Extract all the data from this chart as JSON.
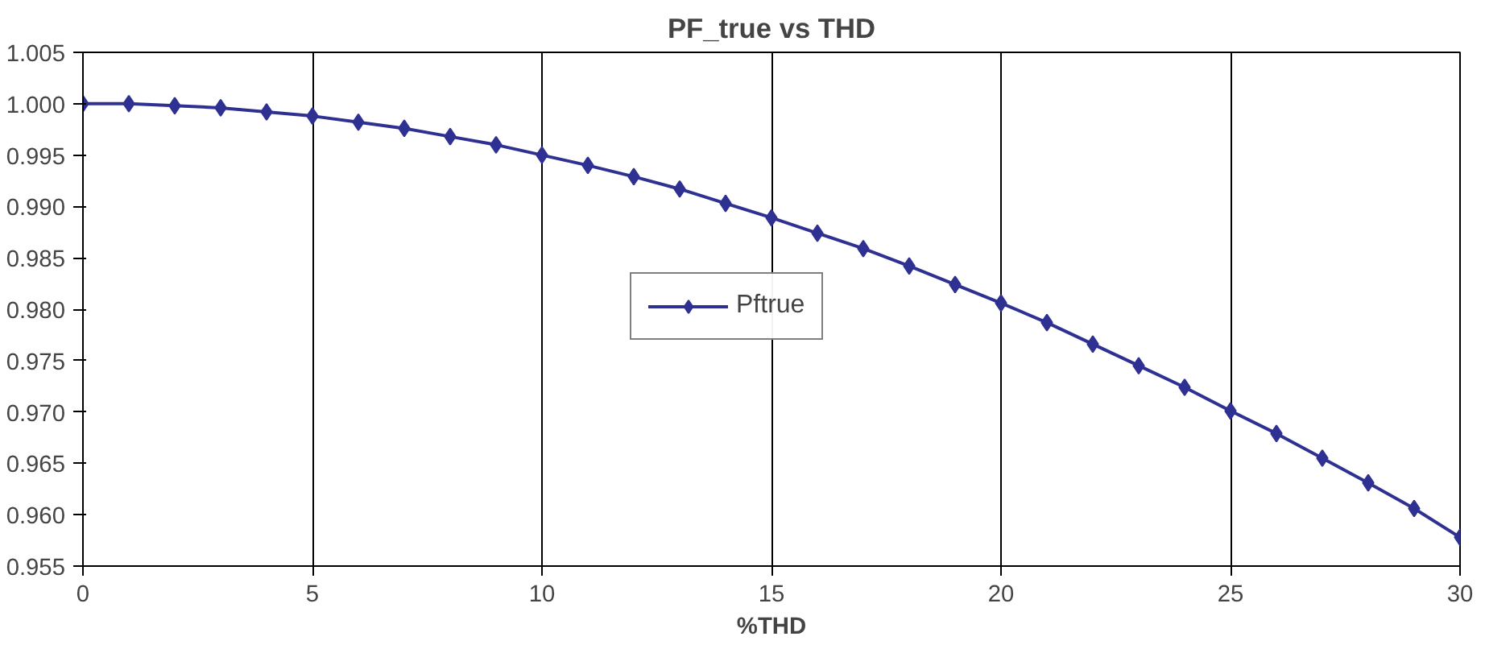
{
  "chart_data": {
    "type": "line",
    "title": "PF_true vs THD",
    "xlabel": "%THD",
    "x": [
      0,
      1,
      2,
      3,
      4,
      5,
      6,
      7,
      8,
      9,
      10,
      11,
      12,
      13,
      14,
      15,
      16,
      17,
      18,
      19,
      20,
      21,
      22,
      23,
      24,
      25,
      26,
      27,
      28,
      29,
      30
    ],
    "series": [
      {
        "name": "Pftrue",
        "color": "#2e3192",
        "values": [
          1.0,
          1.0,
          0.9998,
          0.9996,
          0.9992,
          0.9988,
          0.9982,
          0.9976,
          0.9968,
          0.996,
          0.995,
          0.994,
          0.9929,
          0.9917,
          0.9903,
          0.9889,
          0.9874,
          0.9859,
          0.9842,
          0.9824,
          0.9806,
          0.9787,
          0.9766,
          0.9745,
          0.9724,
          0.9701,
          0.9679,
          0.9655,
          0.9631,
          0.9606,
          0.9578
        ]
      }
    ],
    "xlim": [
      0,
      30
    ],
    "xticks": [
      0,
      5,
      10,
      15,
      20,
      25,
      30
    ],
    "ylim": [
      0.955,
      1.005
    ],
    "yticks": [
      {
        "value": 0.955,
        "label": "0.955"
      },
      {
        "value": 0.96,
        "label": "0.960"
      },
      {
        "value": 0.965,
        "label": "0.965"
      },
      {
        "value": 0.97,
        "label": "0.970"
      },
      {
        "value": 0.975,
        "label": "0.975"
      },
      {
        "value": 0.98,
        "label": "0.980"
      },
      {
        "value": 0.985,
        "label": "0.985"
      },
      {
        "value": 0.99,
        "label": "0.990"
      },
      {
        "value": 0.995,
        "label": "0.995"
      },
      {
        "value": 1.0,
        "label": "1.000"
      },
      {
        "value": 1.005,
        "label": "1.005"
      }
    ],
    "grid": "x",
    "legend": "left",
    "marker": "diamond",
    "line_style": "solid"
  }
}
